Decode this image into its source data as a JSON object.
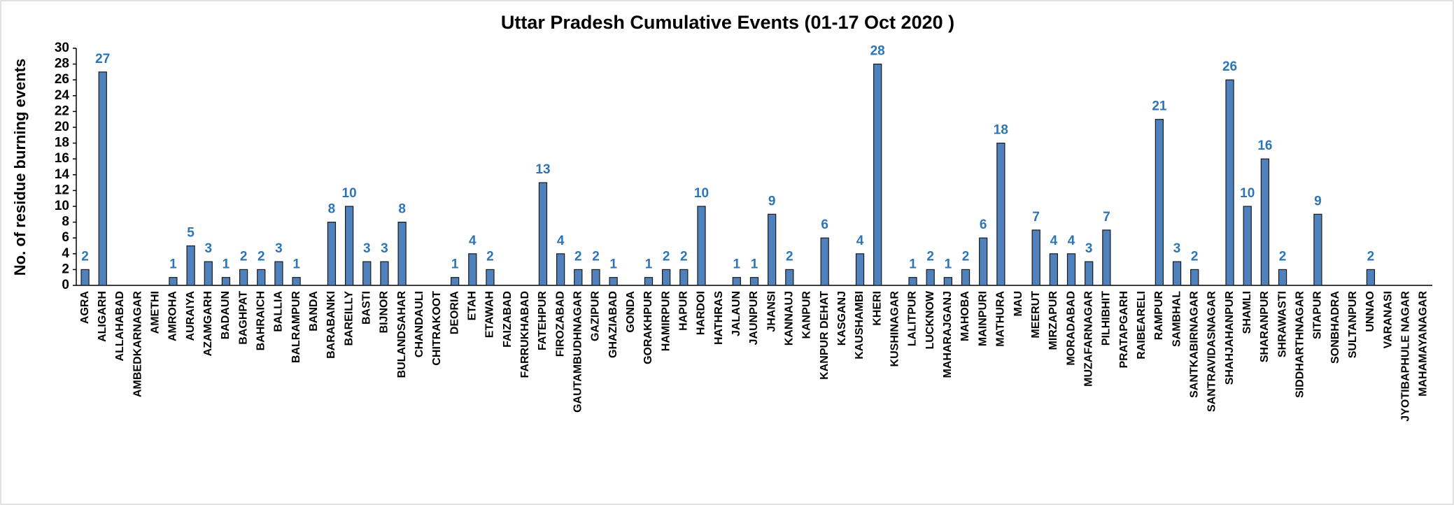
{
  "chart_data": {
    "type": "bar",
    "title": "Uttar Pradesh Cumulative Events (01-17 Oct 2020 )",
    "y_label": "No. of residue burning events",
    "categories": [
      "AGRA",
      "ALIGARH",
      "ALLAHABAD",
      "AMBEDKARNAGAR",
      "AMETHI",
      "AMROHA",
      "AURAIYA",
      "AZAMGARH",
      "BADAUN",
      "BAGHPAT",
      "BAHRAICH",
      "BALLIA",
      "BALRAMPUR",
      "BANDA",
      "BARABANKI",
      "BAREILLY",
      "BASTI",
      "BIJNOR",
      "BULANDSAHAR",
      "CHANDAULI",
      "CHITRAKOOT",
      "DEORIA",
      "ETAH",
      "ETAWAH",
      "FAIZABAD",
      "FARRUKHABAD",
      "FATEHPUR",
      "FIROZABAD",
      "GAUTAMBUDHNAGAR",
      "GAZIPUR",
      "GHAZIABAD",
      "GONDA",
      "GORAKHPUR",
      "HAMIRPUR",
      "HAPUR",
      "HARDOI",
      "HATHRAS",
      "JALAUN",
      "JAUNPUR",
      "JHANSI",
      "KANNAUJ",
      "KANPUR",
      "KANPUR DEHAT",
      "KASGANJ",
      "KAUSHAMBI",
      "KHERI",
      "KUSHINAGAR",
      "LALITPUR",
      "LUCKNOW",
      "MAHARAJGANJ",
      "MAHOBA",
      "MAINPURI",
      "MATHURA",
      "MAU",
      "MEERUT",
      "MIRZAPUR",
      "MORADABAD",
      "MUZAFARNAGAR",
      "PILHIBHIT",
      "PRATAPGARH",
      "RAIBEARELI",
      "RAMPUR",
      "SAMBHAL",
      "SANTKABIRNAGAR",
      "SANTRAVIDASNAGAR",
      "SHAHJAHANPUR",
      "SHAMLI",
      "SHARANPUR",
      "SHRAWASTI",
      "SIDDHARTHNAGAR",
      "SITAPUR",
      "SONBHADRA",
      "SULTANPUR",
      "UNNAO",
      "VARANASI",
      "JYOTIBAPHULE NAGAR",
      "MAHAMAYANAGAR"
    ],
    "values": [
      2,
      27,
      0,
      0,
      0,
      1,
      5,
      3,
      1,
      2,
      2,
      3,
      1,
      0,
      8,
      10,
      3,
      3,
      8,
      0,
      0,
      1,
      4,
      2,
      0,
      0,
      13,
      4,
      2,
      2,
      1,
      0,
      1,
      2,
      2,
      10,
      0,
      1,
      1,
      9,
      2,
      0,
      6,
      0,
      4,
      28,
      0,
      1,
      2,
      1,
      2,
      6,
      18,
      0,
      7,
      4,
      4,
      3,
      7,
      0,
      0,
      21,
      3,
      2,
      0,
      26,
      10,
      16,
      2,
      0,
      9,
      0,
      0,
      2,
      0,
      0,
      0
    ],
    "color": "#4f81bd",
    "label_color": "#2e75b6",
    "ylim": [
      0,
      30
    ],
    "yticks": [
      0,
      2,
      4,
      6,
      8,
      10,
      12,
      14,
      16,
      18,
      20,
      22,
      24,
      26,
      28,
      30
    ]
  }
}
